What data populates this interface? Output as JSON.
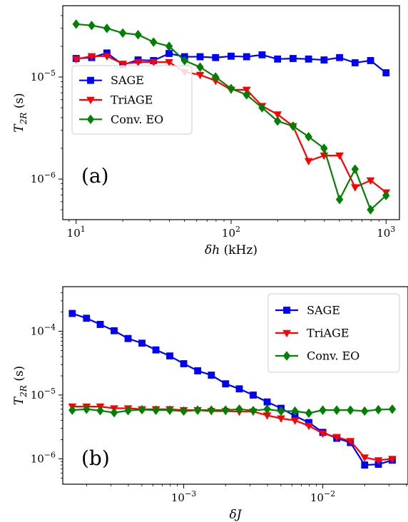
{
  "chart_data": [
    {
      "type": "line",
      "panel_label": "(a)",
      "xlabel_symbol": "δh",
      "xlabel_unit": " (kHz)",
      "ylabel_base": "T",
      "ylabel_sub": "2R",
      "ylabel_unit": " (s)",
      "xscale": "log",
      "yscale": "log",
      "xlim": [
        8.2,
        1220
      ],
      "ylim": [
        4e-07,
        5e-05
      ],
      "xticks": [
        {
          "value": 10,
          "base": "10",
          "exp": "1"
        },
        {
          "value": 100,
          "base": "10",
          "exp": "2"
        },
        {
          "value": 1000,
          "base": "10",
          "exp": "3"
        }
      ],
      "yticks": [
        {
          "value": 1e-06,
          "base": "10",
          "exp": "−6"
        },
        {
          "value": 1e-05,
          "base": "10",
          "exp": "−5"
        }
      ],
      "grid": false,
      "legend_position": "center-left",
      "x": [
        10,
        12.6,
        15.8,
        20,
        25.1,
        31.6,
        39.8,
        50.1,
        63.1,
        79.4,
        100,
        125.9,
        158.5,
        199.5,
        251.2,
        316.2,
        398.1,
        501.2,
        631,
        794.3,
        1000
      ],
      "series": [
        {
          "name": "SAGE",
          "color": "#0000ff",
          "marker": "square",
          "values": [
            1.52e-05,
            1.55e-05,
            1.72e-05,
            1.32e-05,
            1.47e-05,
            1.45e-05,
            1.7e-05,
            1.58e-05,
            1.58e-05,
            1.55e-05,
            1.6e-05,
            1.58e-05,
            1.65e-05,
            1.5e-05,
            1.52e-05,
            1.5e-05,
            1.47e-05,
            1.55e-05,
            1.38e-05,
            1.45e-05,
            1.1e-05
          ]
        },
        {
          "name": "TriAGE",
          "color": "#ff0000",
          "marker": "triangle-down",
          "values": [
            1.5e-05,
            1.6e-05,
            1.6e-05,
            1.35e-05,
            1.4e-05,
            1.4e-05,
            1.4e-05,
            1.12e-05,
            1.05e-05,
            9.2e-06,
            7.5e-06,
            7.5e-06,
            5.2e-06,
            4.3e-06,
            3.3e-06,
            1.5e-06,
            1.7e-06,
            1.7e-06,
            8.3e-07,
            9.7e-07,
            7.4e-07
          ]
        },
        {
          "name": "Conv. EO",
          "color": "#008000",
          "marker": "diamond",
          "values": [
            3.3e-05,
            3.2e-05,
            3e-05,
            2.7e-05,
            2.6e-05,
            2.2e-05,
            2e-05,
            1.45e-05,
            1.25e-05,
            1e-05,
            7.7e-06,
            6.7e-06,
            5e-06,
            3.7e-06,
            3.3e-06,
            2.6e-06,
            2e-06,
            6.3e-07,
            1.25e-06,
            5e-07,
            6.9e-07
          ]
        }
      ]
    },
    {
      "type": "line",
      "panel_label": "(b)",
      "xlabel_symbol": "δJ",
      "xlabel_unit": "",
      "ylabel_base": "T",
      "ylabel_sub": "2R",
      "ylabel_unit": " (s)",
      "xscale": "log",
      "yscale": "log",
      "xlim": [
        0.000135,
        0.041
      ],
      "ylim": [
        4e-07,
        0.0005
      ],
      "xticks": [
        {
          "value": 0.001,
          "base": "10",
          "exp": "−3"
        },
        {
          "value": 0.01,
          "base": "10",
          "exp": "−2"
        }
      ],
      "yticks": [
        {
          "value": 1e-06,
          "base": "10",
          "exp": "−6"
        },
        {
          "value": 1e-05,
          "base": "10",
          "exp": "−5"
        },
        {
          "value": 0.0001,
          "base": "10",
          "exp": "−4"
        }
      ],
      "grid": false,
      "legend_position": "upper-right",
      "x": [
        0.000158,
        0.0002,
        0.000251,
        0.000316,
        0.000398,
        0.000501,
        0.000631,
        0.000794,
        0.001,
        0.00126,
        0.00158,
        0.002,
        0.00251,
        0.00316,
        0.00398,
        0.00501,
        0.00631,
        0.00794,
        0.01,
        0.0126,
        0.0158,
        0.02,
        0.0251,
        0.0316
      ],
      "series": [
        {
          "name": "SAGE",
          "color": "#0000ff",
          "marker": "square",
          "values": [
            0.00019,
            0.00016,
            0.000128,
            0.000102,
            7.7e-05,
            6.5e-05,
            5.1e-05,
            4.1e-05,
            3.1e-05,
            2.4e-05,
            2.05e-05,
            1.5e-05,
            1.25e-05,
            1e-05,
            7.8e-06,
            6.2e-06,
            4.7e-06,
            3.7e-06,
            2.6e-06,
            2.1e-06,
            1.8e-06,
            8e-07,
            8.2e-07,
            9.5e-07
          ]
        },
        {
          "name": "TriAGE",
          "color": "#ff0000",
          "marker": "triangle-down",
          "values": [
            6.6e-06,
            6.6e-06,
            6.6e-06,
            6.2e-06,
            6.2e-06,
            6e-06,
            6e-06,
            6e-06,
            5.8e-06,
            5.8e-06,
            5.6e-06,
            5.6e-06,
            5.5e-06,
            5.5e-06,
            4.8e-06,
            4.3e-06,
            4e-06,
            3.3e-06,
            2.5e-06,
            2.2e-06,
            1.9e-06,
            1.05e-06,
            9.5e-07,
            1e-06
          ]
        },
        {
          "name": "Conv. EO",
          "color": "#008000",
          "marker": "diamond",
          "values": [
            5.8e-06,
            6e-06,
            5.7e-06,
            5.3e-06,
            5.7e-06,
            5.9e-06,
            5.8e-06,
            5.8e-06,
            5.6e-06,
            5.8e-06,
            5.8e-06,
            5.8e-06,
            6e-06,
            5.7e-06,
            6e-06,
            5.6e-06,
            5.6e-06,
            5.2e-06,
            5.8e-06,
            5.8e-06,
            5.8e-06,
            5.6e-06,
            5.9e-06,
            6e-06
          ]
        }
      ]
    }
  ]
}
